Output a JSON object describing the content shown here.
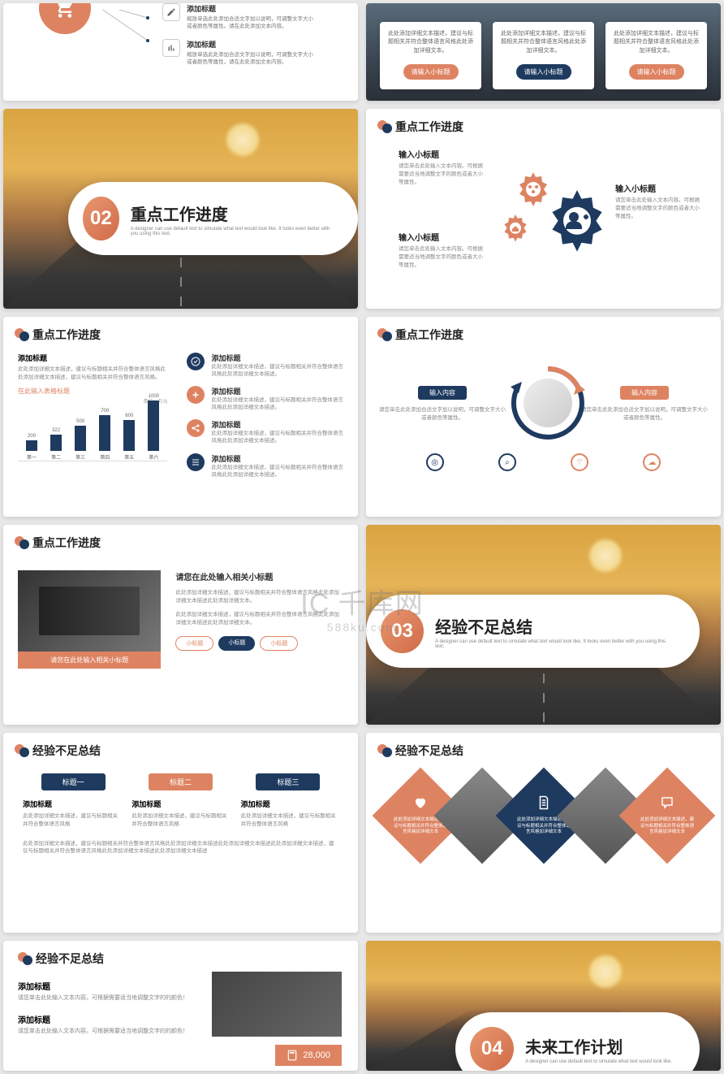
{
  "watermark": {
    "main": "千库网",
    "sub": "588ku.com",
    "logo": "IC"
  },
  "colors": {
    "orange": "#de8362",
    "navy": "#1e3a5f",
    "bg": "#e8e8e8",
    "text_muted": "#888"
  },
  "slide1_left": {
    "items": [
      {
        "title": "添加标题",
        "desc": "缩放单选此处添加合适文字加以说明，可调整文字大小或者颜色等属性。请在此处添加文本内容。"
      },
      {
        "title": "添加标题",
        "desc": "缩放单选此处添加合适文字加以说明，可调整文字大小或者颜色等属性，请在此处添加文本内容。"
      }
    ]
  },
  "slide1_right": {
    "bg": "city-skyline",
    "cards": [
      {
        "desc": "此处添加详细文本描述，建议与标题相关并符合整体语言风格此处添加详细文本。",
        "btn": "请输入小标题",
        "color": "orange"
      },
      {
        "desc": "此处添加详细文本描述，建议与标题相关并符合整体语言风格此处添加详细文本。",
        "btn": "请输入小标题",
        "color": "navy"
      },
      {
        "desc": "此处添加详细文本描述，建议与标题相关并符合整体语言风格此处添加详细文本。",
        "btn": "请输入小标题",
        "color": "orange"
      }
    ]
  },
  "section02": {
    "num": "02",
    "title": "重点工作进度",
    "sub": "A designer can use default text to simulate what text would look like. It looks even better with you using this text."
  },
  "section03": {
    "num": "03",
    "title": "经验不足总结",
    "sub": "A designer can use default text to simulate what text would look like. It looks even better with you using this text."
  },
  "section04": {
    "num": "04",
    "title": "未来工作计划",
    "sub": "A designer can use default text to simulate what text would look like."
  },
  "gears": {
    "header": "重点工作进度",
    "labels": [
      {
        "title": "输入小标题",
        "desc": "请您单击此处输入文本内容。可根据需要适当地调整文字的颜色或者大小等属性。"
      },
      {
        "title": "输入小标题",
        "desc": "请您单击此处输入文本内容。可根据需要适当地调整文字的颜色或者大小等属性。"
      },
      {
        "title": "输入小标题",
        "desc": "请您单击此处输入文本内容。可根据需要适当地调整文字的颜色或者大小等属性。"
      }
    ]
  },
  "barchart": {
    "header": "重点工作进度",
    "left_title": "添加标题",
    "left_desc": "此处添加详细文本描述，建议与标题相关并符合整体语言风格此处添加详细文本描述，建议与标题相关并符合整体语言风格。",
    "chart_title": "在此输入表格标题",
    "unit": "单位：万元",
    "max": 1000,
    "categories": [
      "第一",
      "第二",
      "第三",
      "第四",
      "第五",
      "第六"
    ],
    "values": [
      200,
      322,
      500,
      700,
      600,
      1000
    ],
    "bar_color": "#1e3a5f",
    "right": [
      {
        "icon": "check",
        "bg": "#1e3a5f",
        "title": "添加标题",
        "desc": "此处添加详细文本描述，建议与标题相关并符合整体语言风格此处添加详细文本描述。"
      },
      {
        "icon": "plus",
        "bg": "#de8362",
        "title": "添加标题",
        "desc": "此处添加详细文本描述，建议与标题相关并符合整体语言风格此处添加详细文本描述。"
      },
      {
        "icon": "share",
        "bg": "#de8362",
        "title": "添加标题",
        "desc": "此处添加详细文本描述，建议与标题相关并符合整体语言风格此处添加详细文本描述。"
      },
      {
        "icon": "list",
        "bg": "#1e3a5f",
        "title": "添加标题",
        "desc": "此处添加详细文本描述，建议与标题相关并符合整体语言风格此处添加详细文本描述。"
      }
    ]
  },
  "circles": {
    "header": "重点工作进度",
    "left": {
      "tag": "输入内容",
      "desc": "请您单击此处添加合适文字加以说明，可调整文字大小或者颜色等属性。"
    },
    "right": {
      "tag": "输入内容",
      "desc": "请您单击此处添加合适文字加以说明，可调整文字大小或者颜色等属性。"
    },
    "icons": [
      "target",
      "search",
      "wifi",
      "cloud"
    ]
  },
  "meeting": {
    "header": "重点工作进度",
    "caption": "请您在此处输入相关小标题",
    "right_title": "请您在此处输入相关小标题",
    "p1": "此处添加详细文本描述，建议与标题相关并符合整体语言风格此处添加详细文本描述此处添加详细文本。",
    "p2": "此处添加详细文本描述，建议与标题相关并符合整体语言风格此处添加详细文本描述此处添加详细文本。",
    "tags": [
      {
        "label": "小标题",
        "style": "outline"
      },
      {
        "label": "小标题",
        "style": "fill"
      },
      {
        "label": "小标题",
        "style": "outline"
      }
    ]
  },
  "tabs": {
    "header": "经验不足总结",
    "tabs": [
      {
        "label": "标题一",
        "bg": "#1e3a5f"
      },
      {
        "label": "标题二",
        "bg": "#de8362"
      },
      {
        "label": "标题三",
        "bg": "#1e3a5f"
      }
    ],
    "cols": [
      {
        "title": "添加标题",
        "desc": "此处添加详细文本描述，建议与标题相关并符合整体语言风格"
      },
      {
        "title": "添加标题",
        "desc": "此处添加详细文本描述，建议与标题相关并符合整体语言风格"
      },
      {
        "title": "添加标题",
        "desc": "此处添加详细文本描述，建议与标题相关并符合整体语言风格"
      }
    ],
    "footer": "此处添加详细文本描述，建议与标题相关并符合整体语言风格此处添加详细文本描述此处添加详细文本描述此处添加详细文本描述，建议与标题相关并符合整体语言风格此处添加详细文本描述此处添加详细文本描述"
  },
  "diamonds": {
    "header": "经验不足总结",
    "items": [
      {
        "type": "shape",
        "bg": "#de8362",
        "icon": "heart",
        "text": "此处添加详细文本描述，建议与标题相关并符合整体语言风格加详细文本"
      },
      {
        "type": "photo"
      },
      {
        "type": "shape",
        "bg": "#1e3a5f",
        "icon": "doc",
        "text": "此处添加详细文本描述，建议与标题相关并符合整体语言风格加详细文本"
      },
      {
        "type": "photo"
      },
      {
        "type": "shape",
        "bg": "#de8362",
        "icon": "chat",
        "text": "此处添加详细文本描述，建议与标题相关并符合整体语言风格加详细文本"
      }
    ]
  },
  "last_left": {
    "header": "经验不足总结",
    "items": [
      {
        "title": "添加标题",
        "desc": "请您单击此处输入文本内容。可根据需要适当地调整文字的的颜色！"
      },
      {
        "title": "添加标题",
        "desc": "请您单击此处输入文本内容。可根据需要适当地调整文字的的颜色！"
      }
    ],
    "number": "28,000"
  }
}
